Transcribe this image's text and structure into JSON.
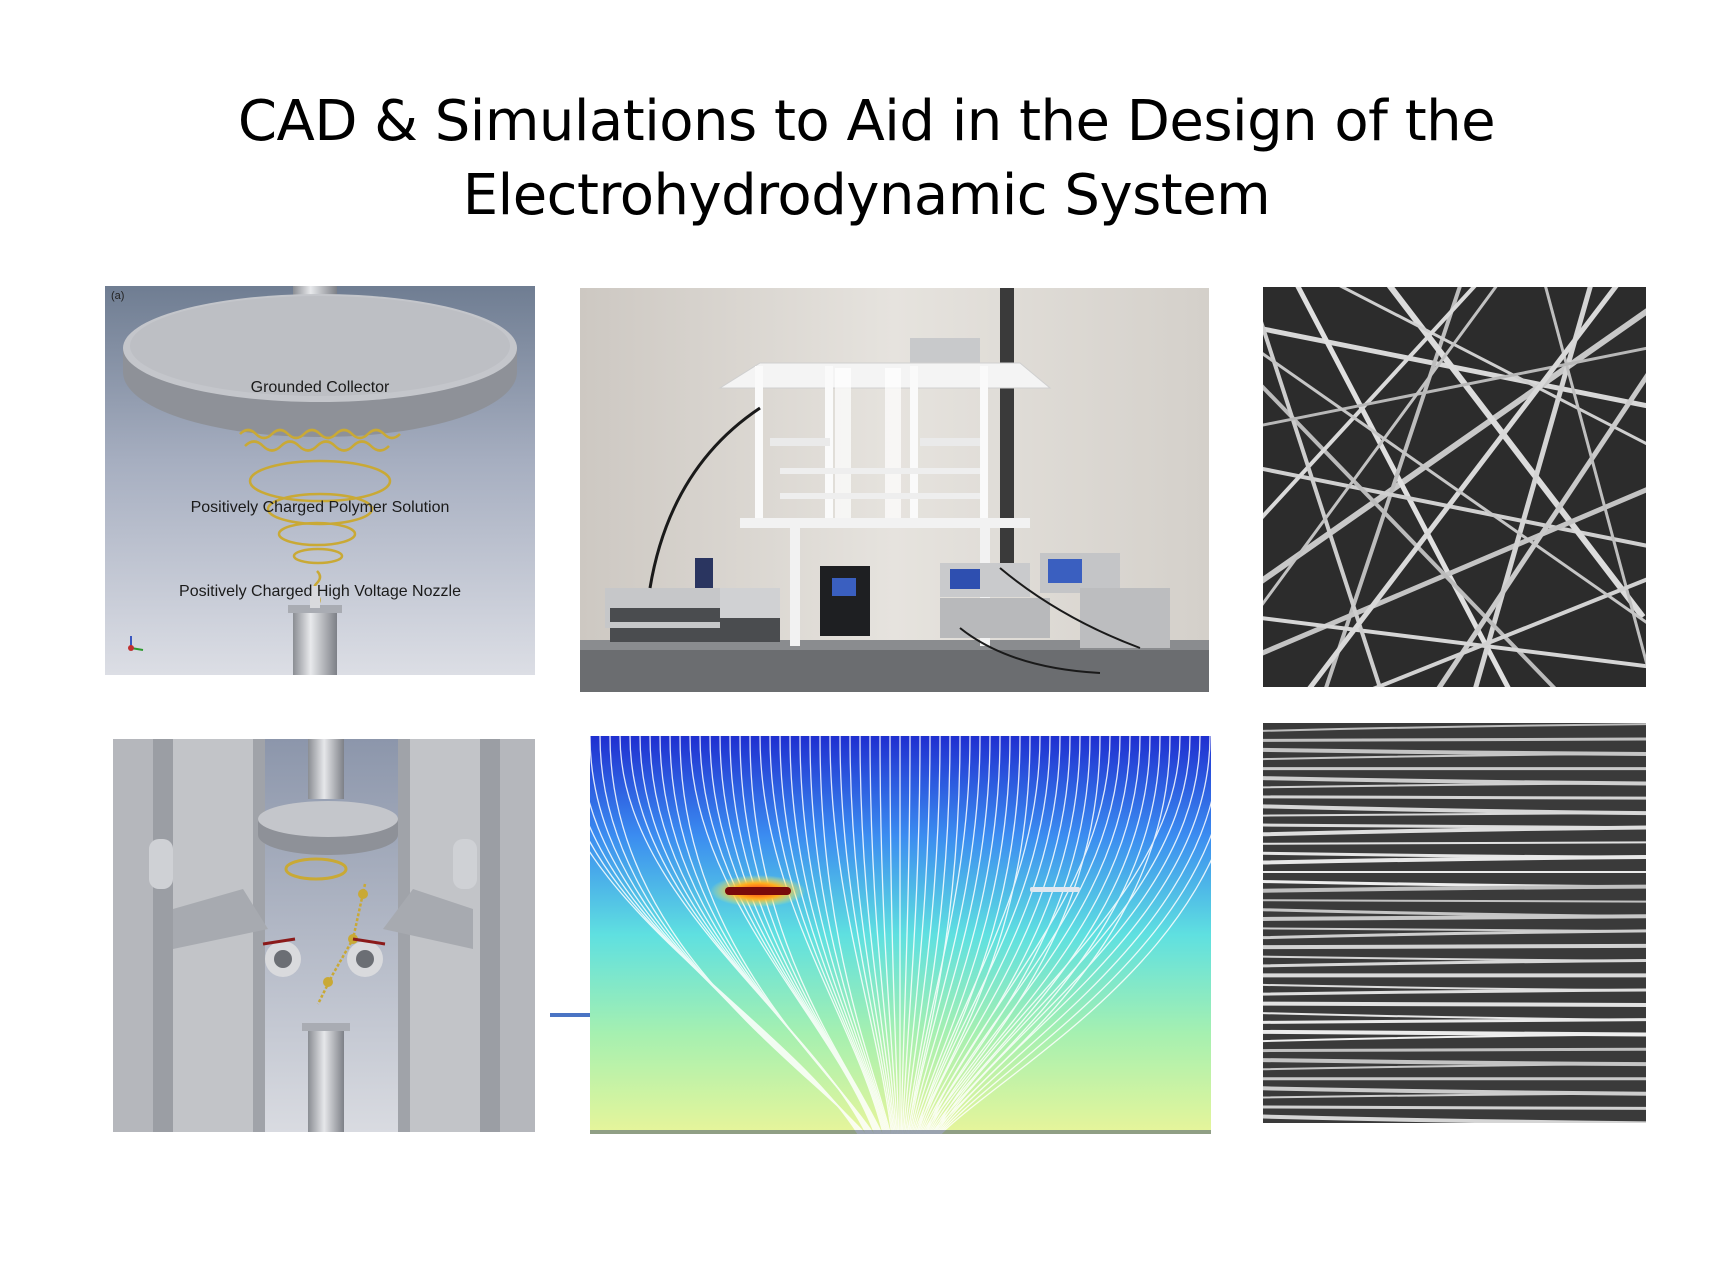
{
  "slide": {
    "title_line1": "CAD & Simulations to Aid in the Design of the",
    "title_line2": "Electrohydrodynamic System"
  },
  "cad_diagram": {
    "panel_letter": "(a)",
    "labels": {
      "collector": "Grounded Collector",
      "solution": "Positively Charged Polymer Solution",
      "nozzle": "Positively Charged High Voltage Nozzle"
    }
  },
  "colors": {
    "cad_background": "#a9b0c0",
    "fiber_gold": "#c9a935",
    "connector_line": "#4a74c4"
  }
}
